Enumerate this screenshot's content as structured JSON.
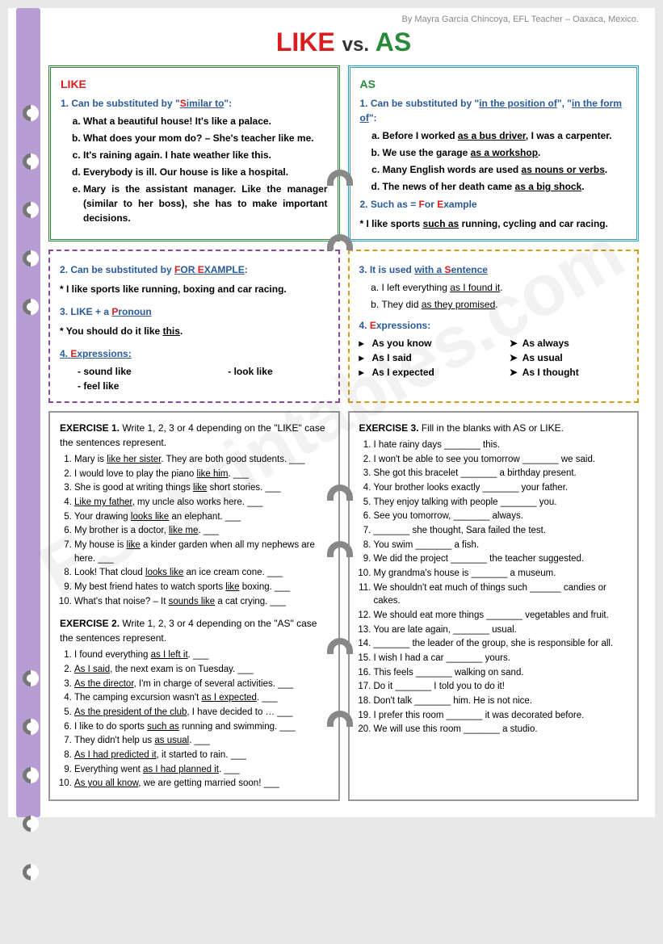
{
  "byline": "By Mayra García Chincoya, EFL Teacher – Oaxaca, Mexico.",
  "title": {
    "like": "LIKE",
    "vs": "vs.",
    "as": "AS"
  },
  "likeBox": {
    "heading": "LIKE",
    "rule1": "1. Can be substituted by \"Similar to\":",
    "items": [
      "What a beautiful house! It's like a palace.",
      "What does your mom do? – She's teacher like me.",
      "It's raining again. I hate weather like this.",
      "Everybody is ill. Our house is like a hospital.",
      "Mary is the assistant manager. Like the manager (similar to her boss), she has to make important decisions."
    ]
  },
  "asBox": {
    "heading": "AS",
    "rule1": "1. Can be substituted by \"in the position of\", \"in the form of\":",
    "items": [
      "Before I worked <u>as a bus driver</u>, I was a carpenter.",
      "We use the garage <u>as a workshop</u>.",
      "Many English words are used <u>as nouns or verbs</u>.",
      "The news of her death came <u>as a big shock</u>."
    ],
    "rule2": "2. Such as = For Example",
    "note": "* I like sports <u>such as</u> running, cycling and car racing."
  },
  "purpleBox": {
    "rule2": "2. Can be substituted by FOR EXAMPLE:",
    "note2": "* I like sports like running, boxing and car racing.",
    "rule3": "3. LIKE + a Pronoun",
    "note3": "* You should do it like <u>this</u>.",
    "rule4": "4. Expressions:",
    "exps": [
      "sound like",
      "feel like",
      "look like"
    ]
  },
  "yellowBox": {
    "rule3": "3. It is used with a Sentence",
    "items": [
      "I left everything <u>as I found it</u>.",
      "They did <u>as they promised</u>."
    ],
    "rule4": "4. Expressions:",
    "col1": [
      "As you know",
      "As I said",
      "As I expected"
    ],
    "col2": [
      "As always",
      "As usual",
      "As I thought"
    ]
  },
  "ex1": {
    "title": "EXERCISE 1.",
    "desc": " Write 1, 2, 3 or 4 depending on the \"LIKE\" case the sentences represent.",
    "items": [
      "Mary is <u>like her sister</u>. They are both good students. ___",
      "I would love to play the piano <u>like him</u>. ___",
      "She is good at writing things <u>like</u> short stories. ___",
      "<u>Like my father</u>, my uncle also works here. ___",
      "Your drawing <u>looks like</u> an elephant. ___",
      "My brother is a doctor, <u>like me</u>. ___",
      "My house is <u>like</u> a kinder garden when all my nephews are here. ___",
      "Look! That cloud <u>looks like</u> an ice cream cone. ___",
      "My best friend hates to watch sports <u>like</u> boxing. ___",
      "What's that noise? – It <u>sounds like</u> a cat crying. ___"
    ]
  },
  "ex2": {
    "title": "EXERCISE 2.",
    "desc": " Write 1, 2, 3 or 4 depending on the \"AS\" case the sentences represent.",
    "items": [
      "I found everything <u>as I left it</u>. ___",
      "<u>As I said</u>, the next exam is on Tuesday. ___",
      "<u>As the director</u>, I'm in charge of several activities. ___",
      "The camping excursion wasn't <u>as I expected</u>. ___",
      "<u>As the president of the club</u>, I have decided to … ___",
      "I like to do sports <u>such as</u> running and swimming. ___",
      "They didn't help us <u>as usual</u>. ___",
      "<u>As I had predicted it</u>, it started to rain. ___",
      "Everything went <u>as I had planned it</u>. ___",
      "<u>As you all know</u>, we are getting married soon! ___"
    ]
  },
  "ex3": {
    "title": "EXERCISE 3.",
    "desc": " Fill in the blanks with AS or LIKE.",
    "items": [
      "I hate rainy days _______ this.",
      "I won't be able to see you tomorrow _______ we said.",
      "She got this bracelet _______ a birthday present.",
      "Your brother looks exactly _______ your father.",
      "They enjoy talking with people _______ you.",
      "See you tomorrow, _______ always.",
      "_______ she thought, Sara failed the test.",
      "You swim _______ a fish.",
      "We did the project _______ the teacher suggested.",
      "My grandma's house is _______ a museum.",
      "We shouldn't eat much of things such ______ candies or cakes.",
      "We should eat more things _______ vegetables and fruit.",
      "You are late again, _______ usual.",
      "_______ the leader of the group, she is responsible for all.",
      "I wish I had a car _______ yours.",
      "This feels _______ walking on sand.",
      "Do it _______ I told you to do it!",
      "Don't talk _______ him. He is not nice.",
      "I prefer this room _______ it was decorated before.",
      "We will use this room _______ a studio."
    ]
  },
  "rings": [
    120,
    180,
    240,
    300,
    360,
    820,
    880,
    940,
    1000,
    1060
  ],
  "arches": [
    {
      "t": 200,
      "l": 395
    },
    {
      "t": 280,
      "l": 395
    },
    {
      "t": 590,
      "l": 395
    },
    {
      "t": 660,
      "l": 395
    },
    {
      "t": 780,
      "l": 395
    },
    {
      "t": 870,
      "l": 395
    }
  ]
}
